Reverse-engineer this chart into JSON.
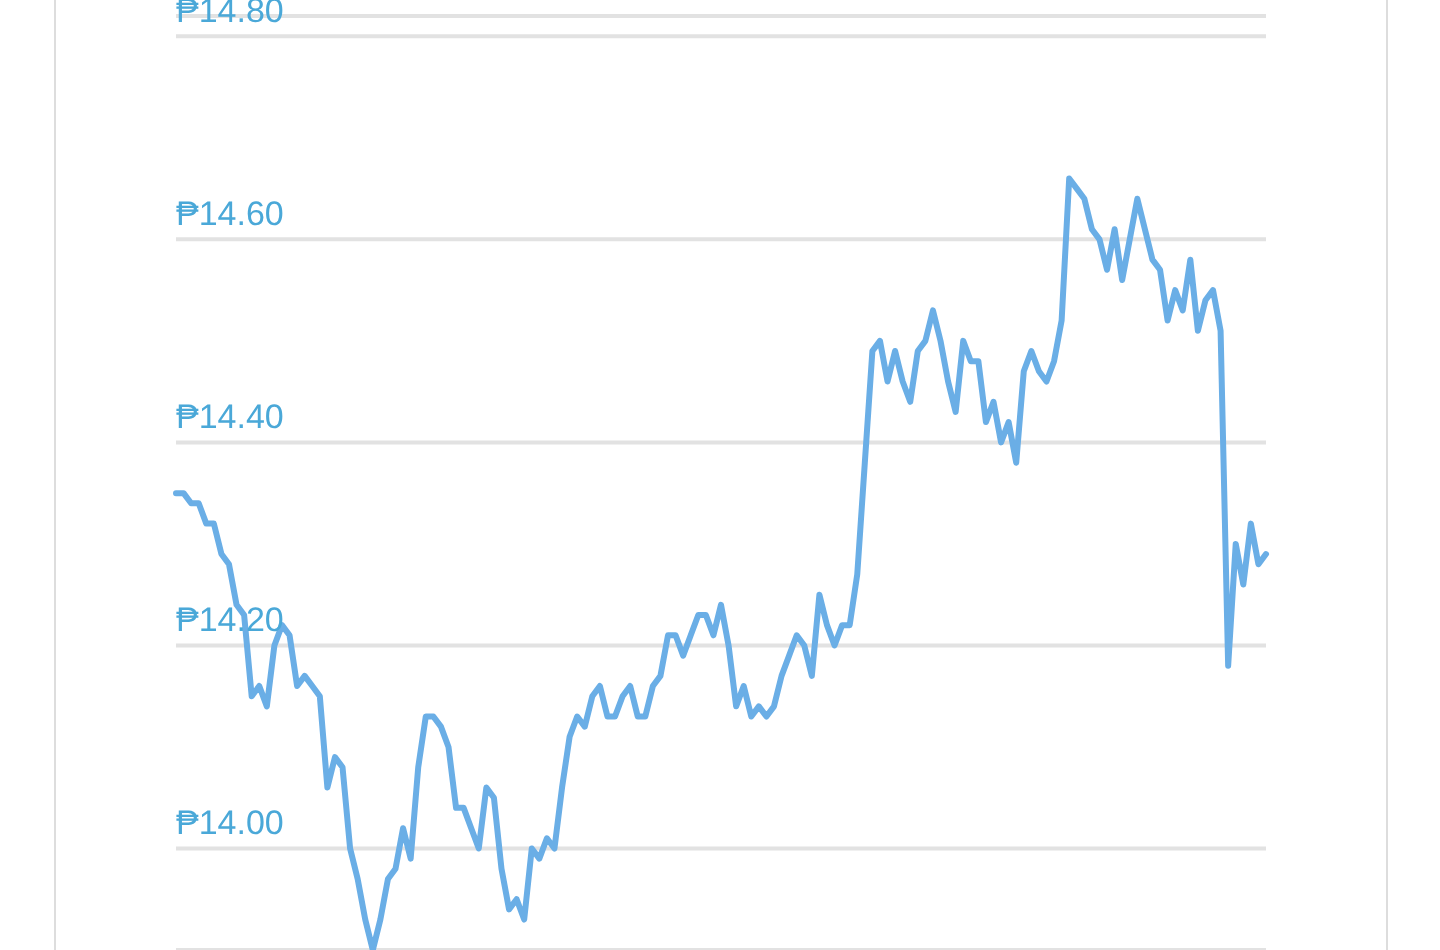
{
  "chart_data": {
    "type": "line",
    "categories": [
      null,
      null,
      null,
      null,
      null,
      null,
      null,
      null,
      null,
      null,
      null,
      null,
      null,
      null,
      null,
      null,
      null,
      null,
      null,
      null,
      null,
      null,
      null,
      null,
      null,
      null,
      null,
      null,
      null,
      null,
      null,
      null,
      null,
      null,
      null,
      null,
      null,
      null,
      null,
      null,
      null,
      null,
      null,
      null,
      null,
      null,
      null,
      null,
      null,
      null,
      null,
      null,
      null,
      null,
      null,
      null,
      null,
      null,
      null,
      null,
      null,
      null,
      null,
      null,
      null,
      null,
      null,
      null,
      null,
      null,
      null,
      null,
      null,
      null,
      null,
      null,
      null,
      null,
      null,
      null,
      null,
      null,
      null,
      null,
      null,
      null,
      null,
      null,
      null,
      null,
      null,
      null,
      null,
      null,
      null,
      null,
      null,
      null,
      null,
      null,
      null,
      null,
      null,
      null,
      null,
      null,
      null,
      null,
      null,
      null,
      null,
      null,
      null,
      null,
      null,
      null,
      null,
      null,
      null,
      null,
      null,
      null,
      null,
      null,
      null,
      null,
      null,
      null,
      null,
      null,
      null,
      null,
      null,
      null,
      null,
      null,
      null,
      null,
      null,
      null,
      null,
      null,
      null,
      null,
      null
    ],
    "series": [
      {
        "color": "#6aaee6",
        "values": [
          14.35,
          14.35,
          14.34,
          14.34,
          14.32,
          14.32,
          14.29,
          14.28,
          14.24,
          14.23,
          14.15,
          14.16,
          14.14,
          14.2,
          14.22,
          14.21,
          14.16,
          14.17,
          14.16,
          14.15,
          14.06,
          14.09,
          14.08,
          14.0,
          13.97,
          13.93,
          13.9,
          13.93,
          13.97,
          13.98,
          14.02,
          13.99,
          14.08,
          14.13,
          14.13,
          14.12,
          14.1,
          14.04,
          14.04,
          14.02,
          14.0,
          14.06,
          14.05,
          13.98,
          13.94,
          13.95,
          13.93,
          14.0,
          13.99,
          14.01,
          14.0,
          14.06,
          14.11,
          14.13,
          14.12,
          14.15,
          14.16,
          14.13,
          14.13,
          14.15,
          14.16,
          14.13,
          14.13,
          14.16,
          14.17,
          14.21,
          14.21,
          14.19,
          14.21,
          14.23,
          14.23,
          14.21,
          14.24,
          14.2,
          14.14,
          14.16,
          14.13,
          14.14,
          14.13,
          14.14,
          14.17,
          14.19,
          14.21,
          14.2,
          14.17,
          14.25,
          14.22,
          14.2,
          14.22,
          14.22,
          14.27,
          14.38,
          14.49,
          14.5,
          14.46,
          14.49,
          14.46,
          14.44,
          14.49,
          14.5,
          14.53,
          14.5,
          14.46,
          14.43,
          14.5,
          14.48,
          14.48,
          14.42,
          14.44,
          14.4,
          14.42,
          14.38,
          14.47,
          14.49,
          14.47,
          14.46,
          14.48,
          14.52,
          14.66,
          14.65,
          14.64,
          14.61,
          14.6,
          14.57,
          14.61,
          14.56,
          14.6,
          14.64,
          14.61,
          14.58,
          14.57,
          14.52,
          14.55,
          14.53,
          14.58,
          14.51,
          14.54,
          14.55,
          14.51,
          14.18,
          14.3,
          14.26,
          14.32,
          14.28,
          14.29
        ]
      }
    ],
    "ylim": [
      13.9,
      14.82
    ],
    "yticks": [
      {
        "value": 14.0,
        "label": "₱14.00"
      },
      {
        "value": 14.2,
        "label": "₱14.20"
      },
      {
        "value": 14.4,
        "label": "₱14.40"
      },
      {
        "value": 14.6,
        "label": "₱14.60"
      },
      {
        "value": 14.8,
        "label": "₱14.80"
      }
    ],
    "grid": "y",
    "tick_labels": "y",
    "marker": "none",
    "line_style": "solid"
  }
}
